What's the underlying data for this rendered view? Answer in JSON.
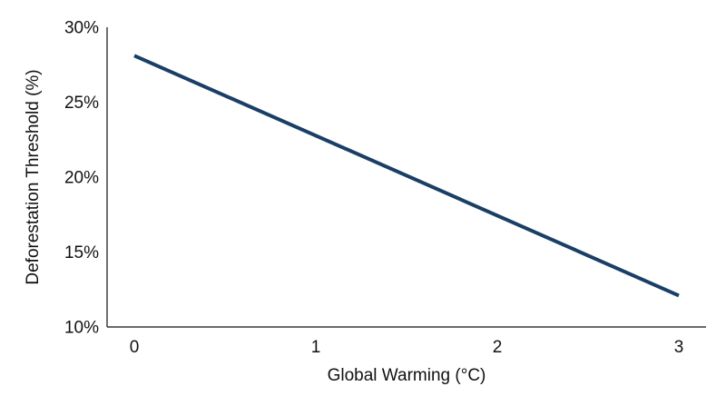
{
  "chart_data": {
    "type": "line",
    "title": "",
    "xlabel": "Global Warming (°C)",
    "ylabel": "Deforestation Threshold (%)",
    "xlim": [
      -0.15,
      3.15
    ],
    "ylim": [
      10,
      30
    ],
    "x_ticks": [
      0,
      1,
      2,
      3
    ],
    "x_tick_labels": [
      "0",
      "1",
      "2",
      "3"
    ],
    "y_ticks": [
      10,
      15,
      20,
      25,
      30
    ],
    "y_tick_labels": [
      "10%",
      "15%",
      "20%",
      "25%",
      "30%"
    ],
    "grid": false,
    "legend": "none",
    "series": [
      {
        "color": "#1a3f66",
        "x": [
          0,
          3
        ],
        "y": [
          28.1,
          12.1
        ]
      }
    ]
  }
}
